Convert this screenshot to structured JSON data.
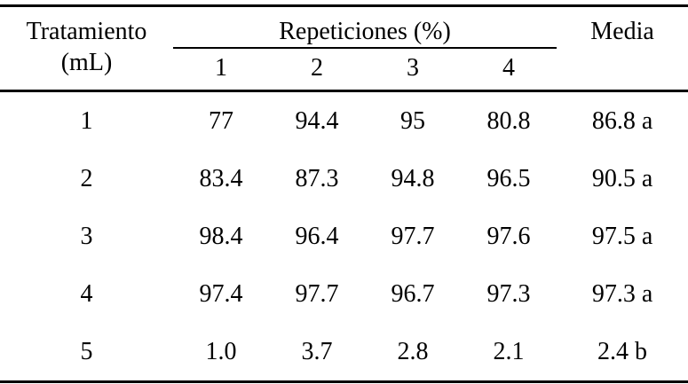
{
  "table": {
    "header": {
      "treatment_line1": "Tratamiento",
      "treatment_line2": "(mL)",
      "repetitions_group": "Repeticiones (%)",
      "rep_numbers": [
        "1",
        "2",
        "3",
        "4"
      ],
      "media": "Media"
    },
    "rows": [
      {
        "treatment": "1",
        "reps": [
          "77",
          "94.4",
          "95",
          "80.8"
        ],
        "media": "86.8 a"
      },
      {
        "treatment": "2",
        "reps": [
          "83.4",
          "87.3",
          "94.8",
          "96.5"
        ],
        "media": "90.5 a"
      },
      {
        "treatment": "3",
        "reps": [
          "98.4",
          "96.4",
          "97.7",
          "97.6"
        ],
        "media": "97.5 a"
      },
      {
        "treatment": "4",
        "reps": [
          "97.4",
          "97.7",
          "96.7",
          "97.3"
        ],
        "media": "97.3 a"
      },
      {
        "treatment": "5",
        "reps": [
          "1.0",
          "3.7",
          "2.8",
          "2.1"
        ],
        "media": "2.4 b"
      }
    ]
  },
  "chart_data": {
    "type": "table",
    "title": "",
    "columns": [
      "Tratamiento (mL)",
      "Repeticion 1 (%)",
      "Repeticion 2 (%)",
      "Repeticion 3 (%)",
      "Repeticion 4 (%)",
      "Media"
    ],
    "rows": [
      [
        "1",
        77,
        94.4,
        95,
        80.8,
        "86.8 a"
      ],
      [
        "2",
        83.4,
        87.3,
        94.8,
        96.5,
        "90.5 a"
      ],
      [
        "3",
        98.4,
        96.4,
        97.7,
        97.6,
        "97.5 a"
      ],
      [
        "4",
        97.4,
        97.7,
        96.7,
        97.3,
        "97.3 a"
      ],
      [
        "5",
        1.0,
        3.7,
        2.8,
        2.1,
        "2.4 b"
      ]
    ]
  },
  "colors": {
    "text": "#000000",
    "background": "#ffffff",
    "rule": "#000000"
  }
}
